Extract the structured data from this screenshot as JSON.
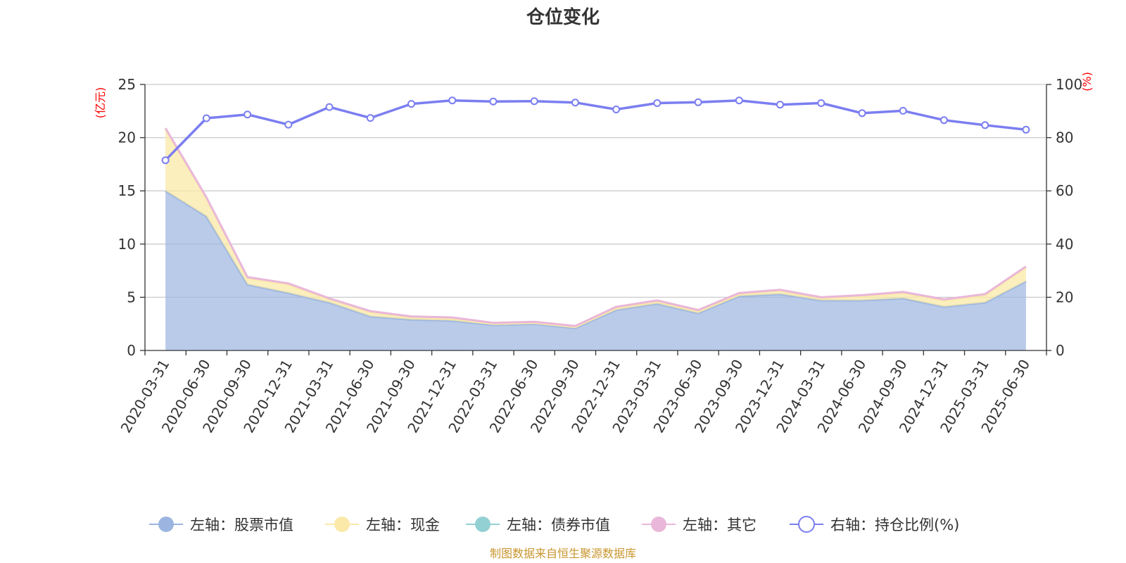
{
  "chart_data": {
    "type": "area",
    "title": "仓位变化",
    "source_note": "制图数据来自恒生聚源数据库",
    "left_axis": {
      "unit": "(亿元)",
      "ylim": [
        0,
        25
      ],
      "ticks": [
        "0",
        "5",
        "10",
        "15",
        "20",
        "25"
      ]
    },
    "right_axis": {
      "unit": "(%)",
      "ylim": [
        0,
        100
      ],
      "ticks": [
        "0",
        "20",
        "40",
        "60",
        "80",
        "100"
      ]
    },
    "grid": true,
    "legend_position": "bottom",
    "categories": [
      "2020-03-31",
      "2020-06-30",
      "2020-09-30",
      "2020-12-31",
      "2021-03-31",
      "2021-06-30",
      "2021-09-30",
      "2021-12-31",
      "2022-03-31",
      "2022-06-30",
      "2022-09-30",
      "2022-12-31",
      "2023-03-31",
      "2023-06-30",
      "2023-09-30",
      "2023-12-31",
      "2024-03-31",
      "2024-06-30",
      "2024-09-30",
      "2024-12-31",
      "2025-03-31",
      "2025-06-30"
    ],
    "series": [
      {
        "name": "左轴：股票市值",
        "axis": "left",
        "color": "#9bb5e0",
        "values": [
          15.0,
          12.6,
          6.2,
          5.4,
          4.5,
          3.2,
          2.9,
          2.8,
          2.4,
          2.5,
          2.1,
          3.8,
          4.4,
          3.5,
          5.1,
          5.3,
          4.7,
          4.7,
          4.9,
          4.1,
          4.5,
          6.5
        ]
      },
      {
        "name": "左轴：现金",
        "axis": "left",
        "color": "#fae9a8",
        "values": [
          5.8,
          1.7,
          0.6,
          0.8,
          0.3,
          0.4,
          0.2,
          0.2,
          0.1,
          0.1,
          0.1,
          0.2,
          0.2,
          0.2,
          0.2,
          0.3,
          0.2,
          0.4,
          0.5,
          0.6,
          0.7,
          1.3
        ]
      },
      {
        "name": "左轴：债券市值",
        "axis": "left",
        "color": "#93d0d4",
        "values": [
          0,
          0,
          0,
          0,
          0,
          0,
          0,
          0,
          0,
          0,
          0,
          0,
          0,
          0,
          0,
          0,
          0,
          0,
          0,
          0,
          0,
          0
        ]
      },
      {
        "name": "左轴：其它",
        "axis": "left",
        "color": "#e9b7d9",
        "values": [
          0.1,
          0.1,
          0.1,
          0.1,
          0.1,
          0.1,
          0.1,
          0.1,
          0.1,
          0.1,
          0.1,
          0.1,
          0.1,
          0.1,
          0.1,
          0.1,
          0.1,
          0.1,
          0.1,
          0.1,
          0.1,
          0.1
        ]
      },
      {
        "name": "右轴：持仓比例(%)",
        "axis": "right",
        "color": "#7b7ef0",
        "values": [
          71.5,
          87.3,
          88.7,
          84.9,
          91.5,
          87.4,
          92.7,
          94.0,
          93.6,
          93.7,
          93.2,
          90.6,
          93.0,
          93.3,
          94.0,
          92.4,
          93.0,
          89.2,
          90.1,
          86.6,
          84.7,
          83.0
        ]
      }
    ]
  }
}
